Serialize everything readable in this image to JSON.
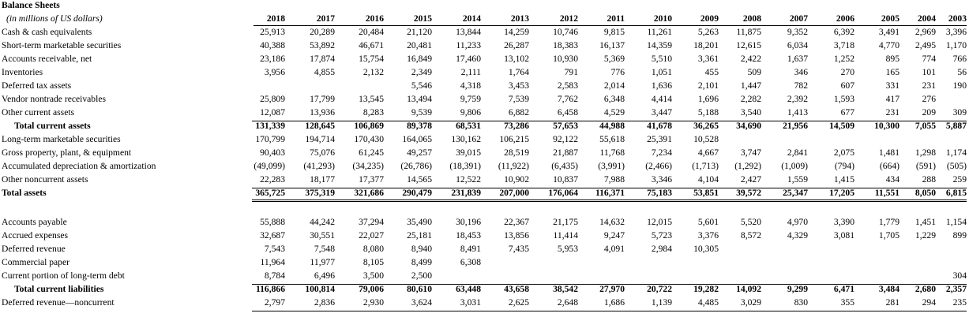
{
  "title": "Balance Sheets",
  "subtitle": "(in millions of US dollars)",
  "years": [
    "2018",
    "2017",
    "2016",
    "2015",
    "2014",
    "2013",
    "2012",
    "2011",
    "2010",
    "2009",
    "2008",
    "2007",
    "2006",
    "2005",
    "2004",
    "2003"
  ],
  "rows": [
    {
      "label": "Cash & cash equivalents",
      "values": [
        "25,913",
        "20,289",
        "20,484",
        "21,120",
        "13,844",
        "14,259",
        "10,746",
        "9,815",
        "11,261",
        "5,263",
        "11,875",
        "9,352",
        "6,392",
        "3,491",
        "2,969",
        "3,396"
      ]
    },
    {
      "label": "Short-term marketable securities",
      "values": [
        "40,388",
        "53,892",
        "46,671",
        "20,481",
        "11,233",
        "26,287",
        "18,383",
        "16,137",
        "14,359",
        "18,201",
        "12,615",
        "6,034",
        "3,718",
        "4,770",
        "2,495",
        "1,170"
      ]
    },
    {
      "label": "Accounts receivable, net",
      "values": [
        "23,186",
        "17,874",
        "15,754",
        "16,849",
        "17,460",
        "13,102",
        "10,930",
        "5,369",
        "5,510",
        "3,361",
        "2,422",
        "1,637",
        "1,252",
        "895",
        "774",
        "766"
      ]
    },
    {
      "label": "Inventories",
      "values": [
        "3,956",
        "4,855",
        "2,132",
        "2,349",
        "2,111",
        "1,764",
        "791",
        "776",
        "1,051",
        "455",
        "509",
        "346",
        "270",
        "165",
        "101",
        "56"
      ]
    },
    {
      "label": "Deferred tax assets",
      "values": [
        "",
        "",
        "",
        "5,546",
        "4,318",
        "3,453",
        "2,583",
        "2,014",
        "1,636",
        "2,101",
        "1,447",
        "782",
        "607",
        "331",
        "231",
        "190"
      ]
    },
    {
      "label": "Vendor nontrade receivables",
      "values": [
        "25,809",
        "17,799",
        "13,545",
        "13,494",
        "9,759",
        "7,539",
        "7,762",
        "6,348",
        "4,414",
        "1,696",
        "2,282",
        "2,392",
        "1,593",
        "417",
        "276",
        ""
      ]
    },
    {
      "label": "Other current assets",
      "values": [
        "12,087",
        "13,936",
        "8,283",
        "9,539",
        "9,806",
        "6,882",
        "6,458",
        "4,529",
        "3,447",
        "5,188",
        "3,540",
        "1,413",
        "677",
        "231",
        "209",
        "309"
      ]
    },
    {
      "label": "Total current assets",
      "indent": true,
      "bold": true,
      "values": [
        "131,339",
        "128,645",
        "106,869",
        "89,378",
        "68,531",
        "73,286",
        "57,653",
        "44,988",
        "41,678",
        "36,265",
        "34,690",
        "21,956",
        "14,509",
        "10,300",
        "7,055",
        "5,887"
      ]
    },
    {
      "label": "Long-term marketable securities",
      "values": [
        "170,799",
        "194,714",
        "170,430",
        "164,065",
        "130,162",
        "106,215",
        "92,122",
        "55,618",
        "25,391",
        "10,528",
        "",
        "",
        "",
        "",
        "",
        ""
      ]
    },
    {
      "label": "Gross property, plant, & equipment",
      "values": [
        "90,403",
        "75,076",
        "61,245",
        "49,257",
        "39,015",
        "28,519",
        "21,887",
        "11,768",
        "7,234",
        "4,667",
        "3,747",
        "2,841",
        "2,075",
        "1,481",
        "1,298",
        "1,174"
      ]
    },
    {
      "label": "Accumulated depreciation & amortization",
      "values": [
        "(49,099)",
        "(41,293)",
        "(34,235)",
        "(26,786)",
        "(18,391)",
        "(11,922)",
        "(6,435)",
        "(3,991)",
        "(2,466)",
        "(1,713)",
        "(1,292)",
        "(1,009)",
        "(794)",
        "(664)",
        "(591)",
        "(505)"
      ]
    },
    {
      "label": "Other noncurrent assets",
      "values": [
        "22,283",
        "18,177",
        "17,377",
        "14,565",
        "12,522",
        "10,902",
        "10,837",
        "7,988",
        "3,346",
        "4,104",
        "2,427",
        "1,559",
        "1,415",
        "434",
        "288",
        "259"
      ]
    },
    {
      "label": "Total assets",
      "bold": true,
      "values": [
        "365,725",
        "375,319",
        "321,686",
        "290,479",
        "231,839",
        "207,000",
        "176,064",
        "116,371",
        "75,183",
        "53,851",
        "39,572",
        "25,347",
        "17,205",
        "11,551",
        "8,050",
        "6,815"
      ]
    },
    {
      "label": "Accounts payable",
      "values": [
        "55,888",
        "44,242",
        "37,294",
        "35,490",
        "30,196",
        "22,367",
        "21,175",
        "14,632",
        "12,015",
        "5,601",
        "5,520",
        "4,970",
        "3,390",
        "1,779",
        "1,451",
        "1,154"
      ]
    },
    {
      "label": "Accrued expenses",
      "values": [
        "32,687",
        "30,551",
        "22,027",
        "25,181",
        "18,453",
        "13,856",
        "11,414",
        "9,247",
        "5,723",
        "3,376",
        "8,572",
        "4,329",
        "3,081",
        "1,705",
        "1,229",
        "899"
      ]
    },
    {
      "label": "Deferred revenue",
      "values": [
        "7,543",
        "7,548",
        "8,080",
        "8,940",
        "8,491",
        "7,435",
        "5,953",
        "4,091",
        "2,984",
        "10,305",
        "",
        "",
        "",
        "",
        "",
        ""
      ]
    },
    {
      "label": "Commercial paper",
      "values": [
        "11,964",
        "11,977",
        "8,105",
        "8,499",
        "6,308",
        "",
        "",
        "",
        "",
        "",
        "",
        "",
        "",
        "",
        "",
        ""
      ]
    },
    {
      "label": "Current portion of long-term debt",
      "values": [
        "8,784",
        "6,496",
        "3,500",
        "2,500",
        "",
        "",
        "",
        "",
        "",
        "",
        "",
        "",
        "",
        "",
        "",
        "304"
      ]
    },
    {
      "label": "Total current liabilities",
      "indent": true,
      "bold": true,
      "values": [
        "116,866",
        "100,814",
        "79,006",
        "80,610",
        "63,448",
        "43,658",
        "38,542",
        "27,970",
        "20,722",
        "19,282",
        "14,092",
        "9,299",
        "6,471",
        "3,484",
        "2,680",
        "2,357"
      ]
    },
    {
      "label": "Deferred revenue—noncurrent",
      "values": [
        "2,797",
        "2,836",
        "2,930",
        "3,624",
        "3,031",
        "2,625",
        "2,648",
        "1,686",
        "1,139",
        "4,485",
        "3,029",
        "830",
        "355",
        "281",
        "294",
        "235"
      ]
    }
  ]
}
